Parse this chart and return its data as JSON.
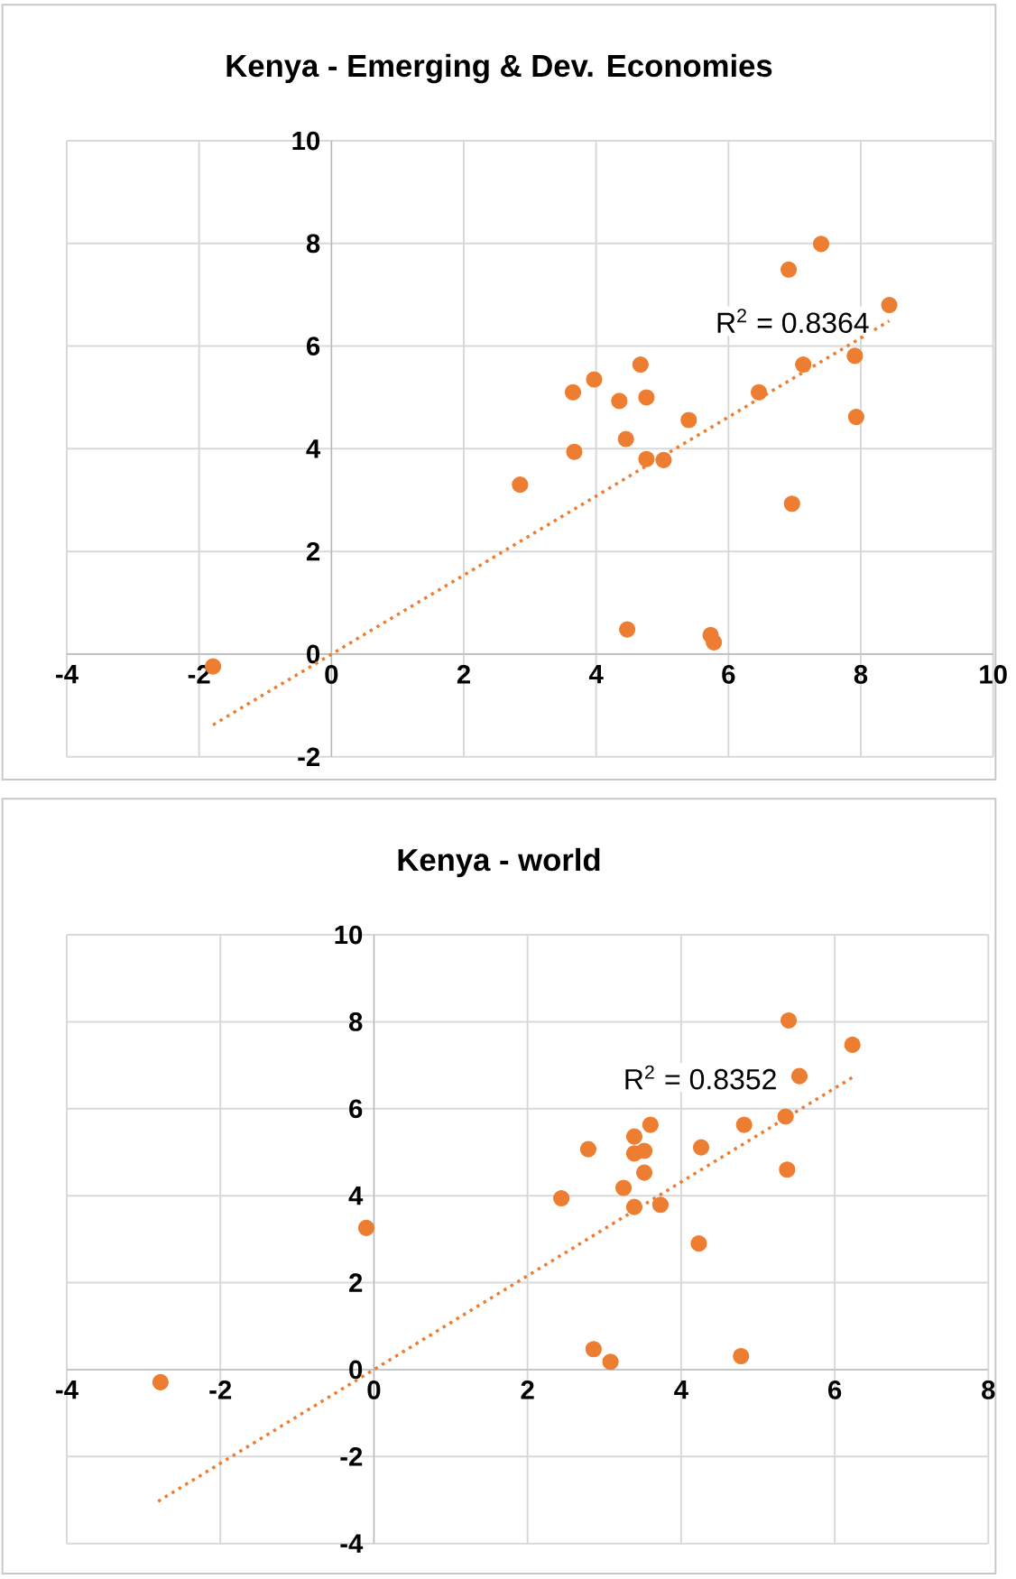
{
  "chart_data": [
    {
      "type": "scatter",
      "title": "Kenya - Emerging & Dev. Economies",
      "xlim": [
        -4,
        10
      ],
      "ylim": [
        -2,
        10
      ],
      "xticks": [
        -4,
        -2,
        0,
        2,
        4,
        6,
        8,
        10
      ],
      "yticks": [
        -2,
        0,
        2,
        4,
        6,
        8,
        10
      ],
      "grid": true,
      "series": [
        {
          "color": "#ed7d31",
          "marker": "circle",
          "x": [
            -1.79,
            2.85,
            3.65,
            3.67,
            3.97,
            4.35,
            4.45,
            4.67,
            4.76,
            4.76,
            5.02,
            5.4,
            4.47,
            5.73,
            5.78,
            6.46,
            6.91,
            6.96,
            7.13,
            7.4,
            7.91,
            7.93,
            8.43
          ],
          "values": [
            -0.24,
            3.3,
            5.1,
            3.94,
            5.35,
            4.93,
            4.19,
            5.64,
            5.0,
            3.8,
            3.78,
            4.56,
            0.48,
            0.37,
            0.23,
            5.1,
            7.49,
            2.93,
            5.64,
            7.99,
            5.81,
            4.62,
            6.8
          ]
        },
        {
          "type": "line",
          "color": "#ed7d31",
          "line_style": "dotted",
          "marker": "none",
          "x": [
            -1.79,
            8.43
          ],
          "values": [
            -1.38,
            6.49
          ]
        }
      ],
      "annotations": [
        "R$^{2}$ = 0.8364"
      ]
    },
    {
      "type": "scatter",
      "title": "Kenya - world",
      "xlim": [
        -4,
        8
      ],
      "ylim": [
        -4,
        10
      ],
      "xticks": [
        -4,
        -2,
        0,
        2,
        4,
        6,
        8
      ],
      "yticks": [
        -4,
        -2,
        0,
        2,
        4,
        6,
        8,
        10
      ],
      "grid": true,
      "series": [
        {
          "color": "#ed7d31",
          "marker": "circle",
          "x": [
            -2.78,
            -0.1,
            2.44,
            2.79,
            2.86,
            3.08,
            3.25,
            3.39,
            3.39,
            3.52,
            3.52,
            3.39,
            3.6,
            3.73,
            4.23,
            4.26,
            4.78,
            4.82,
            5.36,
            5.38,
            5.4,
            5.54,
            6.23
          ],
          "values": [
            -0.29,
            3.26,
            3.94,
            5.07,
            0.47,
            0.18,
            4.18,
            5.36,
            4.97,
            5.03,
            4.53,
            3.74,
            5.63,
            3.79,
            2.9,
            5.11,
            0.31,
            5.63,
            5.82,
            4.6,
            8.03,
            6.75,
            7.47
          ]
        },
        {
          "type": "line",
          "color": "#ed7d31",
          "line_style": "dotted",
          "marker": "none",
          "x": [
            -2.81,
            6.23
          ],
          "values": [
            -3.03,
            6.72
          ]
        }
      ],
      "annotations": [
        "R$^{2}$ = 0.8352"
      ]
    }
  ]
}
